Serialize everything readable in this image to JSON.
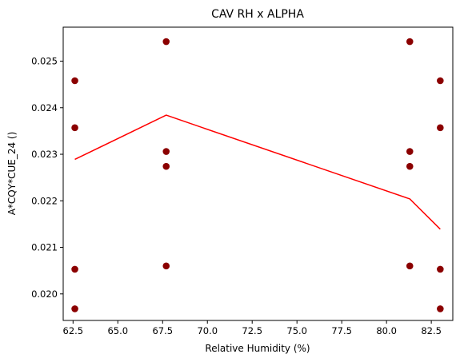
{
  "chart_data": {
    "type": "scatter",
    "title": "CAV RH x ALPHA",
    "xlabel": "Relative Humidity (%)",
    "ylabel": "A*CQY*CUE_24 ()",
    "xlim": [
      61.95,
      83.7
    ],
    "ylim": [
      0.01943,
      0.02573
    ],
    "xticks": [
      "62.5",
      "65.0",
      "67.5",
      "70.0",
      "72.5",
      "75.0",
      "77.5",
      "80.0",
      "82.5"
    ],
    "yticks": [
      "0.020",
      "0.021",
      "0.022",
      "0.023",
      "0.024",
      "0.025"
    ],
    "grid": false,
    "legend": "none",
    "scatter": {
      "color": "#8b0000",
      "points": [
        {
          "x": 62.6,
          "y": 0.02458
        },
        {
          "x": 62.6,
          "y": 0.02357
        },
        {
          "x": 62.6,
          "y": 0.02053
        },
        {
          "x": 62.6,
          "y": 0.01968
        },
        {
          "x": 67.7,
          "y": 0.02542
        },
        {
          "x": 67.7,
          "y": 0.02306
        },
        {
          "x": 67.7,
          "y": 0.02274
        },
        {
          "x": 67.7,
          "y": 0.0206
        },
        {
          "x": 81.3,
          "y": 0.02542
        },
        {
          "x": 81.3,
          "y": 0.02306
        },
        {
          "x": 81.3,
          "y": 0.02274
        },
        {
          "x": 81.3,
          "y": 0.0206
        },
        {
          "x": 83.0,
          "y": 0.02458
        },
        {
          "x": 83.0,
          "y": 0.02357
        },
        {
          "x": 83.0,
          "y": 0.02053
        },
        {
          "x": 83.0,
          "y": 0.01968
        }
      ]
    },
    "line": {
      "color": "#ff0000",
      "points": [
        {
          "x": 62.6,
          "y": 0.02289
        },
        {
          "x": 67.7,
          "y": 0.02384
        },
        {
          "x": 81.3,
          "y": 0.02204
        },
        {
          "x": 83.0,
          "y": 0.02139
        }
      ]
    }
  }
}
